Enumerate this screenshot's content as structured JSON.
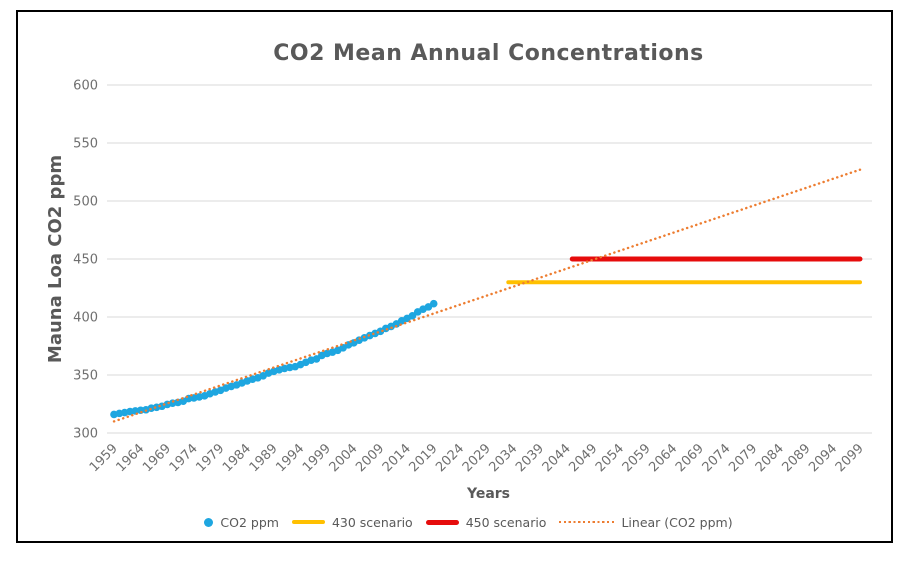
{
  "chart_data": {
    "type": "scatter",
    "title": "CO2 Mean Annual Concentrations",
    "xlabel": "Years",
    "ylabel": "Mauna Loa CO2 ppm",
    "xlim": [
      1959,
      2099
    ],
    "ylim": [
      300,
      600
    ],
    "grid": "horizontal-only",
    "legend_position": "bottom-center",
    "y_ticks": [
      300,
      350,
      400,
      450,
      500,
      550,
      600
    ],
    "x_ticks": [
      1959,
      1964,
      1969,
      1974,
      1979,
      1984,
      1989,
      1994,
      1999,
      2004,
      2009,
      2014,
      2019,
      2024,
      2029,
      2034,
      2039,
      2044,
      2049,
      2054,
      2059,
      2064,
      2069,
      2074,
      2079,
      2084,
      2089,
      2094,
      2099
    ],
    "series": [
      {
        "name": "CO2 ppm",
        "type": "scatter",
        "color": "#1EA6E0",
        "marker": "dot",
        "years": [
          1959,
          1960,
          1961,
          1962,
          1963,
          1964,
          1965,
          1966,
          1967,
          1968,
          1969,
          1970,
          1971,
          1972,
          1973,
          1974,
          1975,
          1976,
          1977,
          1978,
          1979,
          1980,
          1981,
          1982,
          1983,
          1984,
          1985,
          1986,
          1987,
          1988,
          1989,
          1990,
          1991,
          1992,
          1993,
          1994,
          1995,
          1996,
          1997,
          1998,
          1999,
          2000,
          2001,
          2002,
          2003,
          2004,
          2005,
          2006,
          2007,
          2008,
          2009,
          2010,
          2011,
          2012,
          2013,
          2014,
          2015,
          2016,
          2017,
          2018,
          2019
        ],
        "values": [
          315.98,
          316.91,
          317.64,
          318.45,
          318.99,
          319.62,
          320.04,
          321.37,
          322.18,
          323.05,
          324.62,
          325.68,
          326.32,
          327.46,
          329.68,
          330.19,
          331.12,
          332.03,
          333.84,
          335.41,
          336.84,
          338.76,
          340.12,
          341.48,
          343.15,
          344.87,
          346.35,
          347.61,
          349.31,
          351.69,
          353.2,
          354.45,
          355.7,
          356.54,
          357.21,
          358.96,
          360.97,
          362.74,
          363.88,
          366.84,
          368.54,
          369.71,
          371.32,
          373.45,
          375.98,
          377.7,
          379.98,
          382.09,
          384.02,
          385.83,
          387.64,
          390.1,
          391.85,
          394.06,
          396.74,
          398.81,
          401.01,
          404.41,
          406.76,
          408.72,
          411.44
        ]
      },
      {
        "name": "430 scenario",
        "type": "line",
        "color": "#FFC000",
        "width": 4,
        "points": [
          [
            2033,
            430
          ],
          [
            2099,
            430
          ]
        ]
      },
      {
        "name": "450 scenario",
        "type": "line",
        "color": "#E60C0C",
        "width": 5,
        "points": [
          [
            2045,
            450
          ],
          [
            2099,
            450
          ]
        ]
      },
      {
        "name": "Linear (CO2 ppm)",
        "type": "trendline",
        "style": "dotted",
        "color": "#ED7D31",
        "width": 2.4,
        "points": [
          [
            1959,
            310
          ],
          [
            2099,
            527
          ]
        ]
      }
    ],
    "legend": [
      {
        "label": "CO2 ppm",
        "marker": "dot",
        "color": "#1EA6E0"
      },
      {
        "label": "430 scenario",
        "marker": "line",
        "color": "#FFC000"
      },
      {
        "label": "450 scenario",
        "marker": "thick-line",
        "color": "#E60C0C"
      },
      {
        "label": "Linear (CO2 ppm)",
        "marker": "dotted",
        "color": "#ED7D31"
      }
    ],
    "colors": {
      "gridline": "#D9D9D9",
      "title_text": "#595959",
      "tick_text": "#6F6F6F",
      "frame_border": "#000000",
      "background": "#FFFFFF"
    }
  }
}
